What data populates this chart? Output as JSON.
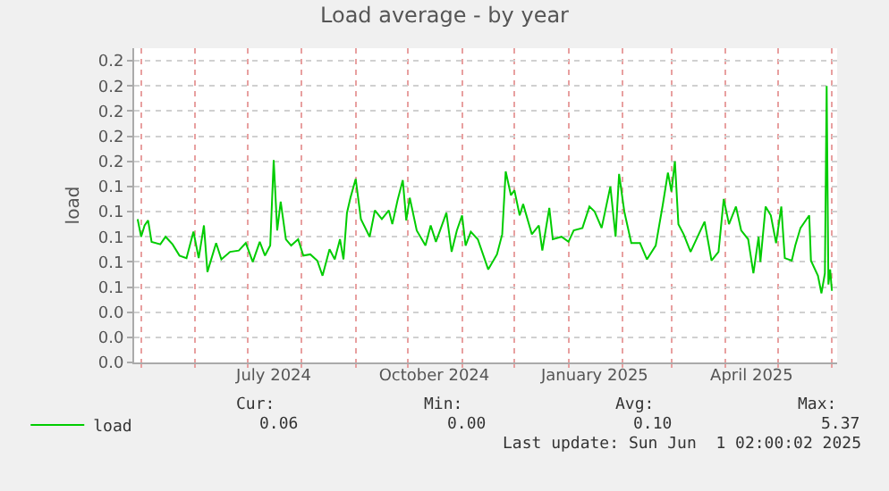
{
  "chart_data": {
    "type": "line",
    "title": "Load average - by year",
    "ylabel": "load",
    "x": [
      "2024-04-29",
      "2024-05-01",
      "2024-05-03",
      "2024-05-05",
      "2024-05-07",
      "2024-05-12",
      "2024-05-15",
      "2024-05-19",
      "2024-05-23",
      "2024-05-27",
      "2024-05-31",
      "2024-06-03",
      "2024-06-06",
      "2024-06-08",
      "2024-06-13",
      "2024-06-16",
      "2024-06-21",
      "2024-06-26",
      "2024-06-30",
      "2024-07-04",
      "2024-07-08",
      "2024-07-11",
      "2024-07-14",
      "2024-07-16",
      "2024-07-18",
      "2024-07-20",
      "2024-07-23",
      "2024-07-26",
      "2024-07-30",
      "2024-08-02",
      "2024-08-06",
      "2024-08-10",
      "2024-08-13",
      "2024-08-17",
      "2024-08-20",
      "2024-08-23",
      "2024-08-25",
      "2024-08-27",
      "2024-08-29",
      "2024-09-01",
      "2024-09-04",
      "2024-09-09",
      "2024-09-12",
      "2024-09-16",
      "2024-09-20",
      "2024-09-22",
      "2024-09-25",
      "2024-09-28",
      "2024-09-30",
      "2024-10-02",
      "2024-10-06",
      "2024-10-11",
      "2024-10-14",
      "2024-10-17",
      "2024-10-23",
      "2024-10-26",
      "2024-10-29",
      "2024-11-01",
      "2024-11-03",
      "2024-11-06",
      "2024-11-10",
      "2024-11-16",
      "2024-11-21",
      "2024-11-24",
      "2024-11-26",
      "2024-11-29",
      "2024-12-01",
      "2024-12-04",
      "2024-12-06",
      "2024-12-11",
      "2024-12-15",
      "2024-12-17",
      "2024-12-21",
      "2024-12-23",
      "2024-12-28",
      "2025-01-01",
      "2025-01-04",
      "2025-01-09",
      "2025-01-13",
      "2025-01-16",
      "2025-01-20",
      "2025-01-25",
      "2025-01-28",
      "2025-01-30",
      "2025-02-02",
      "2025-02-06",
      "2025-02-11",
      "2025-02-15",
      "2025-02-20",
      "2025-02-24",
      "2025-02-27",
      "2025-03-01",
      "2025-03-03",
      "2025-03-05",
      "2025-03-08",
      "2025-03-12",
      "2025-03-16",
      "2025-03-20",
      "2025-03-24",
      "2025-03-28",
      "2025-03-31",
      "2025-04-03",
      "2025-04-07",
      "2025-04-10",
      "2025-04-14",
      "2025-04-17",
      "2025-04-20",
      "2025-04-21",
      "2025-04-24",
      "2025-04-27",
      "2025-04-30",
      "2025-05-03",
      "2025-05-05",
      "2025-05-09",
      "2025-05-11",
      "2025-05-14",
      "2025-05-19",
      "2025-05-20",
      "2025-05-24",
      "2025-05-26",
      "2025-05-28",
      "2025-05-29",
      "2025-05-30",
      "2025-05-31",
      "2025-06-01"
    ],
    "series": [
      {
        "name": "load",
        "color": "#00cc00",
        "values": [
          0.114,
          0.1,
          0.109,
          0.113,
          0.096,
          0.094,
          0.1,
          0.094,
          0.085,
          0.083,
          0.104,
          0.083,
          0.109,
          0.072,
          0.095,
          0.082,
          0.088,
          0.089,
          0.095,
          0.08,
          0.096,
          0.085,
          0.093,
          0.161,
          0.105,
          0.128,
          0.098,
          0.093,
          0.098,
          0.085,
          0.086,
          0.081,
          0.069,
          0.09,
          0.082,
          0.098,
          0.082,
          0.119,
          0.131,
          0.146,
          0.114,
          0.1,
          0.121,
          0.114,
          0.121,
          0.11,
          0.129,
          0.145,
          0.113,
          0.131,
          0.105,
          0.093,
          0.109,
          0.096,
          0.119,
          0.088,
          0.105,
          0.117,
          0.093,
          0.104,
          0.098,
          0.074,
          0.086,
          0.102,
          0.152,
          0.133,
          0.137,
          0.117,
          0.126,
          0.102,
          0.109,
          0.089,
          0.123,
          0.098,
          0.1,
          0.096,
          0.105,
          0.107,
          0.124,
          0.12,
          0.107,
          0.14,
          0.1,
          0.15,
          0.12,
          0.095,
          0.095,
          0.082,
          0.093,
          0.125,
          0.151,
          0.136,
          0.16,
          0.11,
          0.102,
          0.088,
          0.1,
          0.112,
          0.081,
          0.088,
          0.13,
          0.11,
          0.124,
          0.105,
          0.098,
          0.071,
          0.1,
          0.08,
          0.124,
          0.117,
          0.095,
          0.124,
          0.083,
          0.081,
          0.093,
          0.107,
          0.117,
          0.081,
          0.069,
          0.055,
          0.071,
          0.22,
          0.062,
          0.074,
          0.057
        ]
      }
    ],
    "xlim": [
      "2024-04-27",
      "2025-06-04"
    ],
    "xticks": [
      {
        "value": "2024-05-01",
        "label": null
      },
      {
        "value": "2024-06-01",
        "label": null
      },
      {
        "value": "2024-07-01",
        "label": null
      },
      {
        "value": "2024-07-16",
        "label": "July 2024"
      },
      {
        "value": "2024-08-01",
        "label": null
      },
      {
        "value": "2024-09-01",
        "label": null
      },
      {
        "value": "2024-10-01",
        "label": null
      },
      {
        "value": "2024-10-16",
        "label": "October 2024"
      },
      {
        "value": "2024-11-01",
        "label": null
      },
      {
        "value": "2024-12-01",
        "label": null
      },
      {
        "value": "2025-01-01",
        "label": null
      },
      {
        "value": "2025-01-16",
        "label": "January 2025"
      },
      {
        "value": "2025-02-01",
        "label": null
      },
      {
        "value": "2025-03-01",
        "label": null
      },
      {
        "value": "2025-04-01",
        "label": null
      },
      {
        "value": "2025-04-16",
        "label": "April 2025"
      },
      {
        "value": "2025-05-01",
        "label": null
      },
      {
        "value": "2025-06-01",
        "label": null
      }
    ],
    "ylim": [
      0,
      0.25
    ],
    "yticks": [
      {
        "value": 0,
        "label": "0.0"
      },
      {
        "value": 0.02,
        "label": "0.0"
      },
      {
        "value": 0.04,
        "label": "0.0"
      },
      {
        "value": 0.06,
        "label": "0.1"
      },
      {
        "value": 0.08,
        "label": "0.1"
      },
      {
        "value": 0.1,
        "label": "0.1"
      },
      {
        "value": 0.12,
        "label": "0.1"
      },
      {
        "value": 0.14,
        "label": "0.1"
      },
      {
        "value": 0.16,
        "label": "0.2"
      },
      {
        "value": 0.18,
        "label": "0.2"
      },
      {
        "value": 0.2,
        "label": "0.2"
      },
      {
        "value": 0.22,
        "label": "0.2"
      },
      {
        "value": 0.24,
        "label": "0.2"
      }
    ],
    "grid": true,
    "legend": "bottom left",
    "marker": "none",
    "line_style": "solid",
    "annotations": [
      "Cur:",
      "0.06",
      "Min:",
      "0.00",
      "Avg:",
      "0.10",
      "Max:",
      "5.37",
      "Last update: Sun Jun  1 02:00:02 2025"
    ]
  }
}
